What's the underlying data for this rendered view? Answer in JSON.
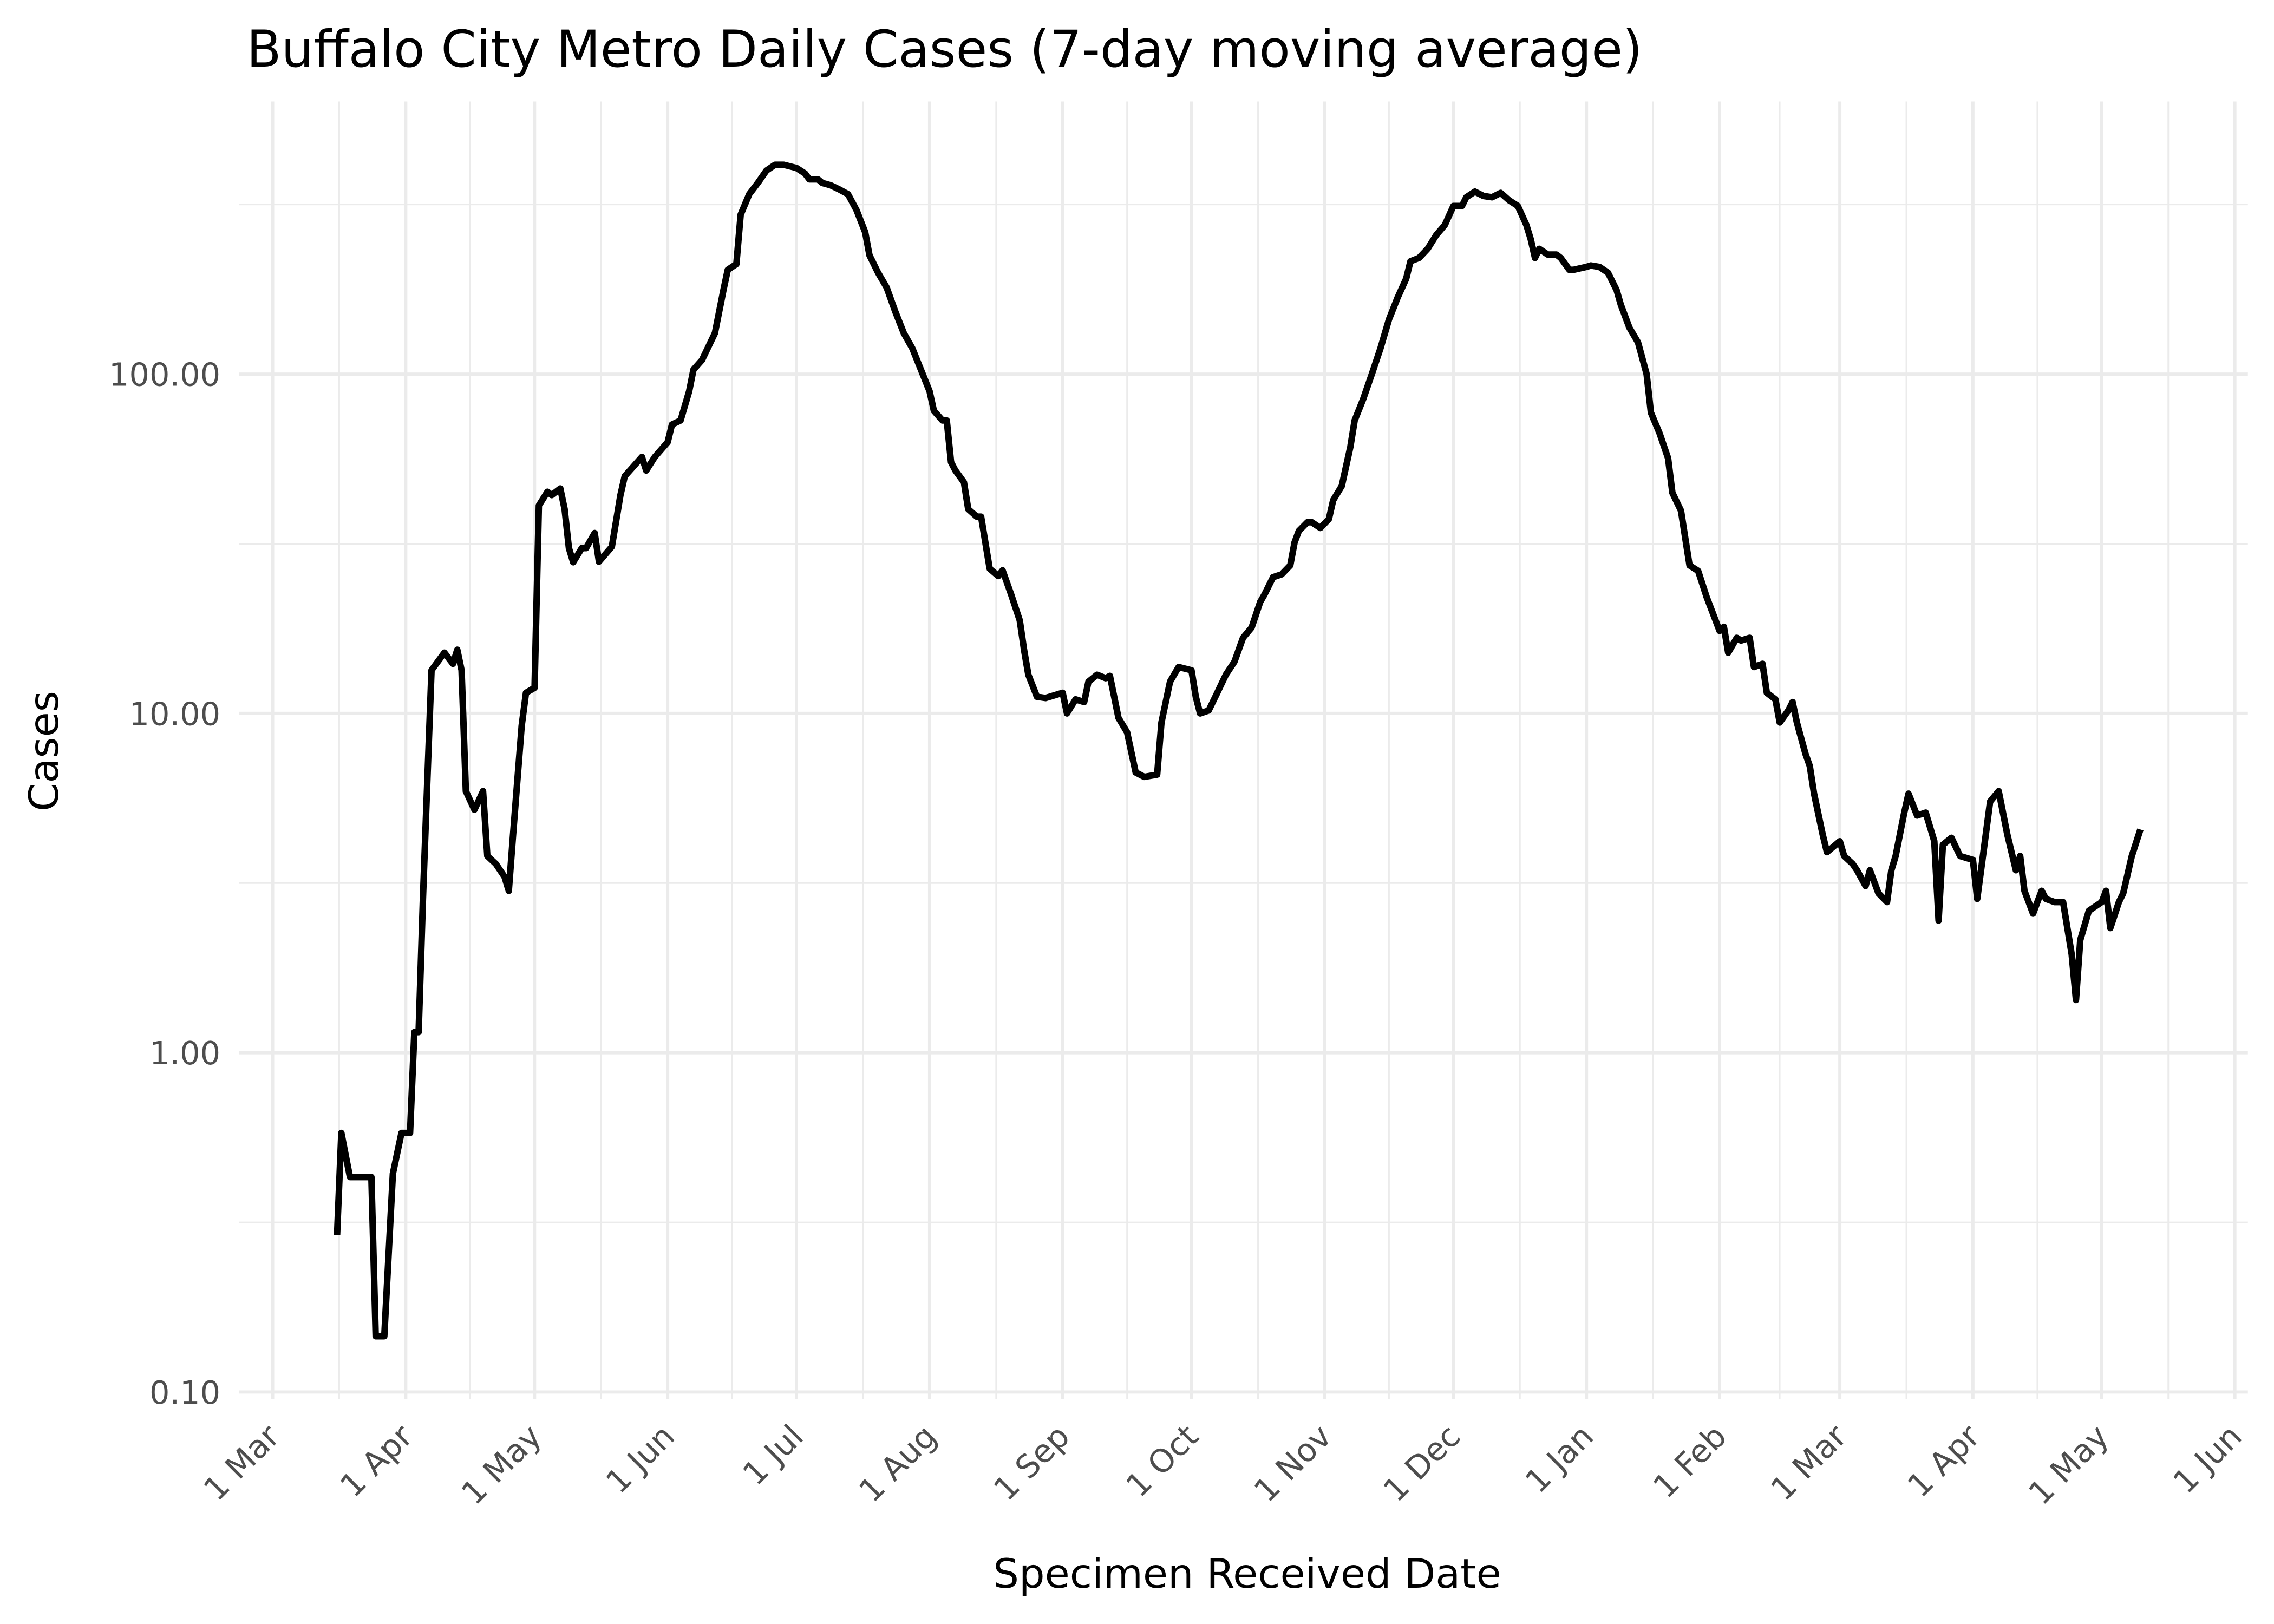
{
  "chart_data": {
    "type": "line",
    "title": "Buffalo City Metro Daily Cases (7-day moving average)",
    "x_label": "Specimen Received Date",
    "y_label": "Cases",
    "log_y": true,
    "grid": true,
    "color": "#000000",
    "x": [
      "16 Mar",
      "17 Mar",
      "19 Mar",
      "24 Mar",
      "25 Mar",
      "27 Mar",
      "29 Mar",
      "31 Mar",
      "2 Apr",
      "3 Apr",
      "4 Apr",
      "5 Apr",
      "6 Apr",
      "7 Apr",
      "10 Apr",
      "12 Apr",
      "13 Apr",
      "14 Apr",
      "15 Apr",
      "17 Apr",
      "19 Apr",
      "20 Apr",
      "22 Apr",
      "24 Apr",
      "25 Apr",
      "26 Apr",
      "28 Apr",
      "29 Apr",
      "1 May",
      "2 May",
      "4 May",
      "5 May",
      "7 May",
      "8 May",
      "9 May",
      "10 May",
      "12 May",
      "13 May",
      "15 May",
      "16 May",
      "19 May",
      "21 May",
      "22 May",
      "26 May",
      "27 May",
      "29 May",
      "1 Jun",
      "2 Jun",
      "4 Jun",
      "6 Jun",
      "7 Jun",
      "9 Jun",
      "12 Jun",
      "14 Jun",
      "15 Jun",
      "17 Jun",
      "18 Jun",
      "20 Jun",
      "22 Jun",
      "24 Jun",
      "26 Jun",
      "28 Jun",
      "1 Jul",
      "3 Jul",
      "4 Jul",
      "6 Jul",
      "7 Jul",
      "9 Jul",
      "11 Jul",
      "13 Jul",
      "15 Jul",
      "17 Jul",
      "18 Jul",
      "20 Jul",
      "22 Jul",
      "24 Jul",
      "26 Jul",
      "28 Jul",
      "1 Aug",
      "2 Aug",
      "4 Aug",
      "5 Aug",
      "6 Aug",
      "7 Aug",
      "9 Aug",
      "10 Aug",
      "12 Aug",
      "13 Aug",
      "15 Aug",
      "17 Aug",
      "18 Aug",
      "20 Aug",
      "22 Aug",
      "23 Aug",
      "24 Aug",
      "26 Aug",
      "28 Aug",
      "1 Sep",
      "2 Sep",
      "4 Sep",
      "6 Sep",
      "7 Sep",
      "9 Sep",
      "11 Sep",
      "12 Sep",
      "14 Sep",
      "16 Sep",
      "18 Sep",
      "20 Sep",
      "23 Sep",
      "24 Sep",
      "26 Sep",
      "28 Sep",
      "1 Oct",
      "2 Oct",
      "3 Oct",
      "5 Oct",
      "7 Oct",
      "9 Oct",
      "11 Oct",
      "13 Oct",
      "15 Oct",
      "17 Oct",
      "18 Oct",
      "20 Oct",
      "22 Oct",
      "24 Oct",
      "25 Oct",
      "26 Oct",
      "28 Oct",
      "29 Oct",
      "31 Oct",
      "2 Nov",
      "3 Nov",
      "5 Nov",
      "7 Nov",
      "8 Nov",
      "10 Nov",
      "12 Nov",
      "14 Nov",
      "16 Nov",
      "18 Nov",
      "20 Nov",
      "21 Nov",
      "23 Nov",
      "25 Nov",
      "27 Nov",
      "29 Nov",
      "1 Dec",
      "3 Dec",
      "4 Dec",
      "6 Dec",
      "8 Dec",
      "10 Dec",
      "12 Dec",
      "14 Dec",
      "16 Dec",
      "18 Dec",
      "19 Dec",
      "20 Dec",
      "21 Dec",
      "23 Dec",
      "25 Dec",
      "26 Dec",
      "28 Dec",
      "29 Dec",
      "1 Jan",
      "2 Jan",
      "4 Jan",
      "6 Jan",
      "8 Jan",
      "9 Jan",
      "11 Jan",
      "13 Jan",
      "15 Jan",
      "16 Jan",
      "18 Jan",
      "20 Jan",
      "21 Jan",
      "23 Jan",
      "25 Jan",
      "27 Jan",
      "29 Jan",
      "1 Feb",
      "2 Feb",
      "3 Feb",
      "5 Feb",
      "6 Feb",
      "8 Feb",
      "9 Feb",
      "11 Feb",
      "12 Feb",
      "14 Feb",
      "15 Feb",
      "17 Feb",
      "18 Feb",
      "19 Feb",
      "21 Feb",
      "22 Feb",
      "23 Feb",
      "25 Feb",
      "26 Feb",
      "1 Mar",
      "2 Mar",
      "4 Mar",
      "5 Mar",
      "7 Mar",
      "8 Mar",
      "10 Mar",
      "12 Mar",
      "13 Mar",
      "14 Mar",
      "16 Mar",
      "17 Mar",
      "19 Mar",
      "21 Mar",
      "23 Mar",
      "24 Mar",
      "25 Mar",
      "27 Mar",
      "29 Mar",
      "1 Apr",
      "2 Apr",
      "4 Apr",
      "5 Apr",
      "7 Apr",
      "9 Apr",
      "11 Apr",
      "12 Apr",
      "13 Apr",
      "15 Apr",
      "17 Apr",
      "18 Apr",
      "20 Apr",
      "22 Apr",
      "24 Apr",
      "25 Apr",
      "26 Apr",
      "28 Apr",
      "1 May",
      "2 May",
      "3 May",
      "5 May",
      "6 May",
      "8 May",
      "10 May"
    ],
    "values": [
      0.29,
      0.58,
      0.43,
      0.43,
      0.146,
      0.146,
      0.44,
      0.58,
      0.58,
      1.15,
      1.15,
      2.84,
      6.2,
      13.4,
      15.1,
      14.0,
      15.4,
      13.4,
      5.9,
      5.2,
      5.9,
      3.8,
      3.6,
      3.3,
      3.0,
      4.4,
      9.2,
      11.5,
      11.9,
      41,
      45,
      44,
      46,
      40,
      30.7,
      27.9,
      30.7,
      30.7,
      34,
      28,
      31,
      44,
      50,
      57,
      52,
      57,
      63,
      71,
      73,
      89,
      103,
      110,
      132,
      177,
      203,
      211,
      295,
      339,
      366,
      398,
      414,
      414,
      405,
      390,
      375,
      375,
      366,
      360,
      350,
      339,
      304,
      262,
      224,
      199,
      180,
      153,
      132,
      119,
      89,
      78,
      73,
      73,
      55,
      52,
      48,
      40,
      38,
      38,
      26.7,
      25.4,
      26.4,
      22.4,
      18.8,
      15.4,
      13,
      11.2,
      11.1,
      11.5,
      10,
      11.0,
      10.8,
      12.4,
      13,
      12.7,
      12.9,
      9.7,
      8.8,
      6.7,
      6.5,
      6.6,
      9.4,
      12.4,
      13.7,
      13.4,
      11.2,
      10,
      10.2,
      11.5,
      13,
      14.2,
      16.7,
      17.9,
      21.3,
      22.4,
      25.2,
      25.7,
      27.3,
      31.9,
      34.5,
      36.6,
      36.6,
      35.2,
      37.4,
      42.5,
      46.8,
      61,
      73,
      84.5,
      100,
      119,
      145,
      168,
      191,
      215,
      220,
      234,
      257,
      275,
      313,
      313,
      332,
      345,
      335,
      332,
      342,
      325,
      313,
      275,
      250,
      220,
      234,
      225,
      225,
      220,
      203,
      203,
      207,
      209,
      207,
      199,
      177,
      160,
      137,
      124,
      100,
      77,
      67,
      56.5,
      44.7,
      39.6,
      27.3,
      26.3,
      22,
      17.5,
      18.0,
      15.1,
      16.7,
      16.4,
      16.7,
      13.7,
      14.0,
      11.5,
      11.0,
      9.4,
      10.2,
      10.8,
      9.4,
      7.6,
      7.0,
      5.8,
      4.4,
      3.9,
      4.2,
      3.8,
      3.6,
      3.45,
      3.1,
      3.45,
      2.95,
      2.78,
      3.45,
      3.8,
      5.1,
      5.8,
      5.0,
      5.1,
      4.2,
      2.45,
      4.1,
      4.3,
      3.8,
      3.7,
      2.84,
      4.4,
      5.5,
      5.9,
      4.4,
      3.45,
      3.8,
      3.0,
      2.57,
      3.0,
      2.84,
      2.78,
      2.78,
      1.95,
      1.43,
      2.15,
      2.62,
      2.78,
      3.0,
      2.33,
      2.78,
      2.95,
      3.8,
      4.55
    ],
    "xticks": [
      "1 Mar",
      "1 Apr",
      "1 May",
      "1 Jun",
      "1 Jul",
      "1 Aug",
      "1 Sep",
      "1 Oct",
      "1 Nov",
      "1 Dec",
      "1 Jan",
      "1 Feb",
      "1 Mar",
      "1 Apr",
      "1 May",
      "1 Jun"
    ],
    "ylim": [
      0.1,
      600
    ],
    "yticks": [
      {
        "value": 0.1,
        "label": "0.10"
      },
      {
        "value": 1,
        "label": "1.00"
      },
      {
        "value": 10,
        "label": "10.00"
      },
      {
        "value": 100,
        "label": "100.00"
      }
    ]
  }
}
